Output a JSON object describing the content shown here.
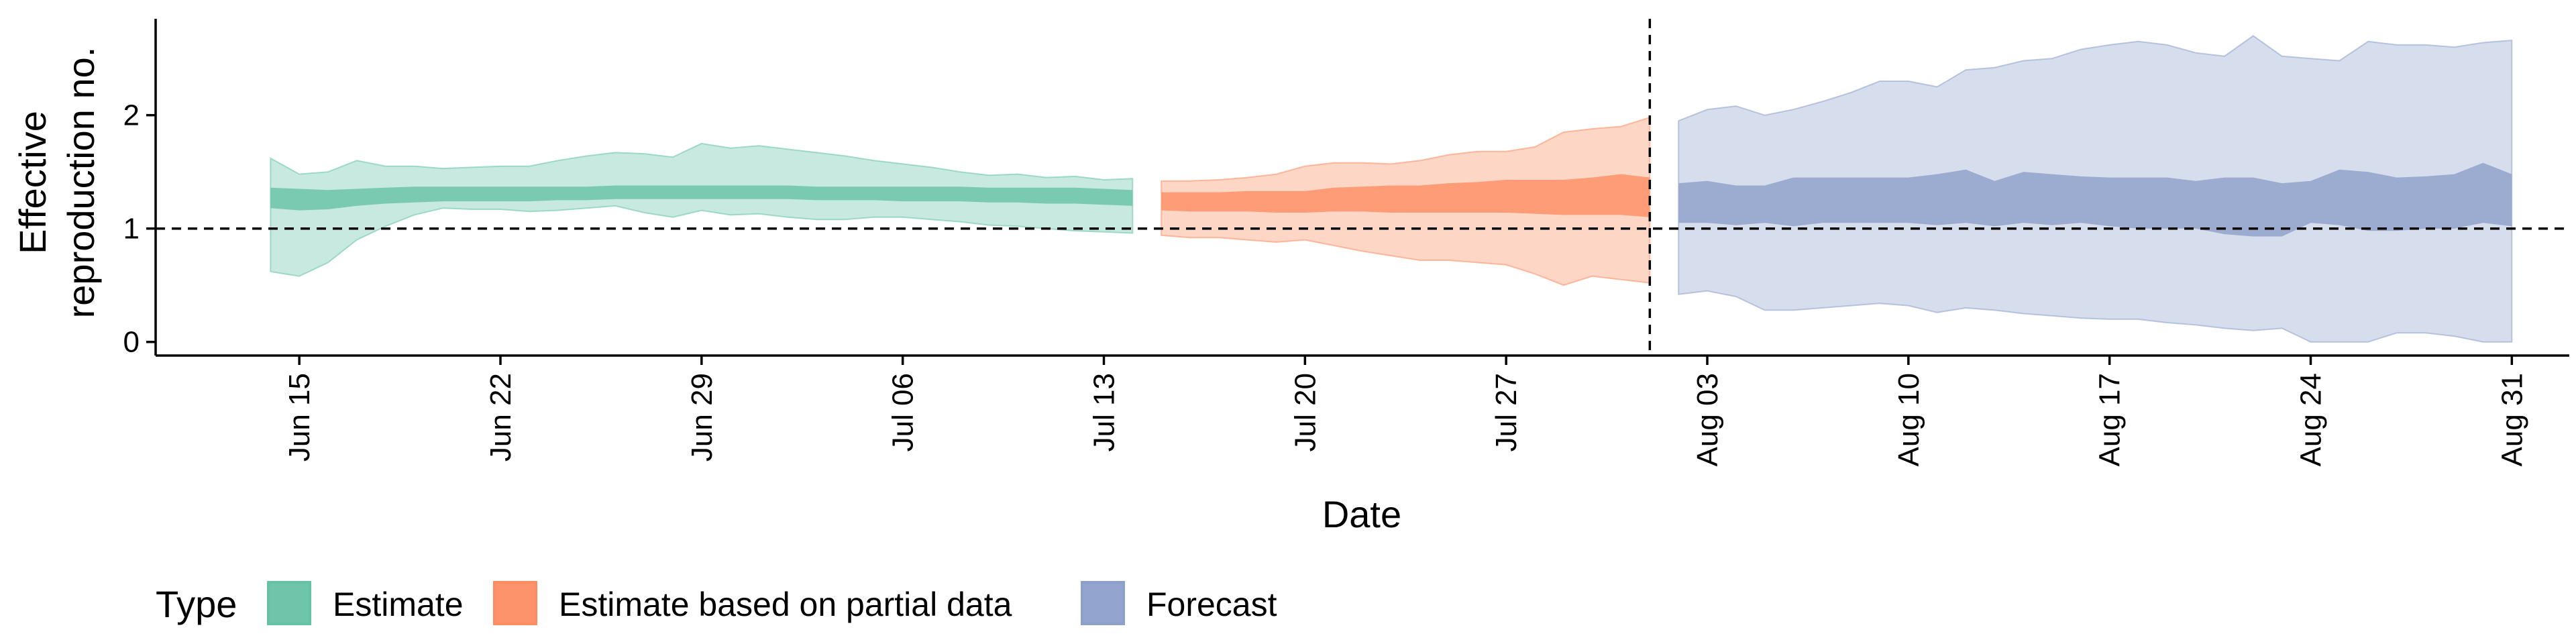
{
  "chart_data": {
    "type": "area",
    "xlabel": "Date",
    "ylabel_lines": [
      "Effective",
      "reproduction no."
    ],
    "xlim": [
      "2020-06-10",
      "2020-09-02"
    ],
    "ylim": [
      -0.12,
      2.85
    ],
    "y_ticks": [
      0,
      1,
      2
    ],
    "x_ticks": [
      {
        "date": "2020-06-15",
        "label": "Jun 15"
      },
      {
        "date": "2020-06-22",
        "label": "Jun 22"
      },
      {
        "date": "2020-06-29",
        "label": "Jun 29"
      },
      {
        "date": "2020-07-06",
        "label": "Jul 06"
      },
      {
        "date": "2020-07-13",
        "label": "Jul 13"
      },
      {
        "date": "2020-07-20",
        "label": "Jul 20"
      },
      {
        "date": "2020-07-27",
        "label": "Jul 27"
      },
      {
        "date": "2020-08-03",
        "label": "Aug 03"
      },
      {
        "date": "2020-08-10",
        "label": "Aug 10"
      },
      {
        "date": "2020-08-17",
        "label": "Aug 17"
      },
      {
        "date": "2020-08-24",
        "label": "Aug 24"
      },
      {
        "date": "2020-08-31",
        "label": "Aug 31"
      }
    ],
    "hline_y": 1,
    "vline_x": "2020-08-01",
    "grid": false,
    "legend": {
      "position": "bottom-left",
      "title": "Type"
    },
    "series": [
      {
        "name": "Estimate",
        "color": "#66c2a5",
        "x": [
          "2020-06-14",
          "2020-06-15",
          "2020-06-16",
          "2020-06-17",
          "2020-06-18",
          "2020-06-19",
          "2020-06-20",
          "2020-06-21",
          "2020-06-22",
          "2020-06-23",
          "2020-06-24",
          "2020-06-25",
          "2020-06-26",
          "2020-06-27",
          "2020-06-28",
          "2020-06-29",
          "2020-06-30",
          "2020-07-01",
          "2020-07-02",
          "2020-07-03",
          "2020-07-04",
          "2020-07-05",
          "2020-07-06",
          "2020-07-07",
          "2020-07-08",
          "2020-07-09",
          "2020-07-10",
          "2020-07-11",
          "2020-07-12",
          "2020-07-13",
          "2020-07-14"
        ],
        "lower_90": [
          0.62,
          0.58,
          0.7,
          0.9,
          1.02,
          1.12,
          1.18,
          1.17,
          1.17,
          1.15,
          1.16,
          1.18,
          1.2,
          1.14,
          1.1,
          1.16,
          1.12,
          1.13,
          1.1,
          1.08,
          1.08,
          1.1,
          1.1,
          1.08,
          1.06,
          1.03,
          1.02,
          1.0,
          0.98,
          0.97,
          0.96
        ],
        "upper_90": [
          1.62,
          1.48,
          1.5,
          1.6,
          1.55,
          1.55,
          1.53,
          1.54,
          1.55,
          1.55,
          1.6,
          1.64,
          1.67,
          1.66,
          1.63,
          1.75,
          1.71,
          1.73,
          1.7,
          1.67,
          1.64,
          1.6,
          1.57,
          1.54,
          1.5,
          1.47,
          1.48,
          1.45,
          1.46,
          1.43,
          1.44
        ],
        "lower_50": [
          1.18,
          1.16,
          1.17,
          1.2,
          1.22,
          1.23,
          1.24,
          1.24,
          1.24,
          1.24,
          1.25,
          1.25,
          1.26,
          1.26,
          1.26,
          1.26,
          1.26,
          1.26,
          1.26,
          1.25,
          1.25,
          1.25,
          1.24,
          1.24,
          1.24,
          1.23,
          1.23,
          1.22,
          1.22,
          1.21,
          1.2
        ],
        "upper_50": [
          1.36,
          1.35,
          1.34,
          1.35,
          1.36,
          1.37,
          1.37,
          1.37,
          1.37,
          1.37,
          1.37,
          1.37,
          1.38,
          1.38,
          1.38,
          1.38,
          1.38,
          1.38,
          1.38,
          1.37,
          1.37,
          1.37,
          1.37,
          1.37,
          1.37,
          1.36,
          1.36,
          1.36,
          1.36,
          1.35,
          1.34
        ]
      },
      {
        "name": "Estimate based on partial data",
        "color": "#fc8d62",
        "x": [
          "2020-07-15",
          "2020-07-16",
          "2020-07-17",
          "2020-07-18",
          "2020-07-19",
          "2020-07-20",
          "2020-07-21",
          "2020-07-22",
          "2020-07-23",
          "2020-07-24",
          "2020-07-25",
          "2020-07-26",
          "2020-07-27",
          "2020-07-28",
          "2020-07-29",
          "2020-07-30",
          "2020-07-31",
          "2020-08-01"
        ],
        "lower_90": [
          0.94,
          0.92,
          0.92,
          0.9,
          0.88,
          0.9,
          0.85,
          0.8,
          0.76,
          0.72,
          0.72,
          0.7,
          0.68,
          0.6,
          0.5,
          0.58,
          0.55,
          0.52
        ],
        "upper_90": [
          1.42,
          1.42,
          1.43,
          1.45,
          1.48,
          1.55,
          1.58,
          1.58,
          1.57,
          1.6,
          1.65,
          1.68,
          1.68,
          1.72,
          1.85,
          1.88,
          1.9,
          1.98
        ],
        "lower_50": [
          1.16,
          1.15,
          1.15,
          1.15,
          1.14,
          1.14,
          1.15,
          1.15,
          1.14,
          1.14,
          1.14,
          1.14,
          1.14,
          1.13,
          1.12,
          1.12,
          1.12,
          1.1
        ],
        "upper_50": [
          1.32,
          1.32,
          1.32,
          1.33,
          1.33,
          1.33,
          1.36,
          1.37,
          1.38,
          1.38,
          1.4,
          1.41,
          1.43,
          1.43,
          1.43,
          1.45,
          1.48,
          1.45
        ]
      },
      {
        "name": "Forecast",
        "color": "#8da0cb",
        "x": [
          "2020-08-02",
          "2020-08-03",
          "2020-08-04",
          "2020-08-05",
          "2020-08-06",
          "2020-08-07",
          "2020-08-08",
          "2020-08-09",
          "2020-08-10",
          "2020-08-11",
          "2020-08-12",
          "2020-08-13",
          "2020-08-14",
          "2020-08-15",
          "2020-08-16",
          "2020-08-17",
          "2020-08-18",
          "2020-08-19",
          "2020-08-20",
          "2020-08-21",
          "2020-08-22",
          "2020-08-23",
          "2020-08-24",
          "2020-08-25",
          "2020-08-26",
          "2020-08-27",
          "2020-08-28",
          "2020-08-29",
          "2020-08-30",
          "2020-08-31"
        ],
        "lower_90": [
          0.42,
          0.45,
          0.4,
          0.28,
          0.28,
          0.3,
          0.32,
          0.34,
          0.32,
          0.26,
          0.3,
          0.28,
          0.25,
          0.23,
          0.21,
          0.2,
          0.2,
          0.17,
          0.15,
          0.12,
          0.1,
          0.12,
          0.0,
          0.0,
          0.0,
          0.08,
          0.08,
          0.05,
          0.0,
          0.0
        ],
        "upper_90": [
          1.95,
          2.05,
          2.08,
          2.0,
          2.05,
          2.12,
          2.2,
          2.3,
          2.3,
          2.25,
          2.4,
          2.42,
          2.48,
          2.5,
          2.58,
          2.62,
          2.65,
          2.62,
          2.55,
          2.52,
          2.7,
          2.52,
          2.5,
          2.48,
          2.65,
          2.62,
          2.62,
          2.6,
          2.64,
          2.66
        ],
        "lower_50": [
          1.05,
          1.05,
          1.03,
          1.05,
          1.02,
          1.05,
          1.05,
          1.05,
          1.05,
          1.03,
          1.05,
          1.02,
          1.05,
          1.03,
          1.05,
          1.02,
          1.0,
          1.0,
          1.0,
          0.95,
          0.93,
          0.93,
          1.05,
          1.03,
          0.98,
          0.98,
          1.0,
          1.0,
          1.05,
          1.02
        ],
        "upper_50": [
          1.4,
          1.42,
          1.38,
          1.38,
          1.45,
          1.45,
          1.45,
          1.45,
          1.45,
          1.48,
          1.52,
          1.42,
          1.5,
          1.48,
          1.46,
          1.45,
          1.45,
          1.45,
          1.42,
          1.45,
          1.45,
          1.4,
          1.42,
          1.52,
          1.5,
          1.45,
          1.46,
          1.48,
          1.58,
          1.48
        ]
      }
    ]
  }
}
